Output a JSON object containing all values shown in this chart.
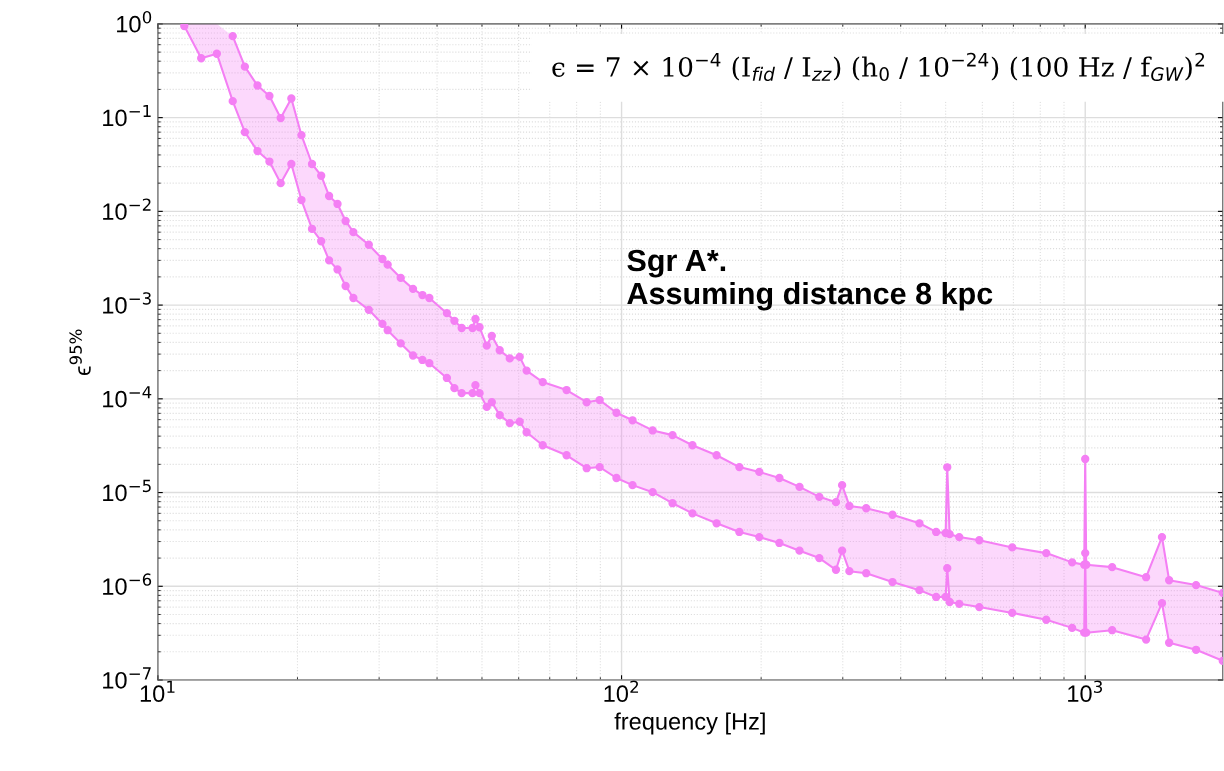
{
  "chart_data": {
    "type": "line",
    "xlabel": "frequency [Hz]",
    "ylabel": "ϵ$^{95%}$",
    "log": "xy",
    "grid": true,
    "marker": "circle",
    "line_style": "solid",
    "xlim": [
      10,
      1980
    ],
    "ylim": [
      1e-07,
      1
    ],
    "xticks": [
      {
        "value": 10,
        "label": "10$^{1}$"
      },
      {
        "value": 100,
        "label": "10$^{2}$"
      },
      {
        "value": 1000,
        "label": "10$^{3}$"
      }
    ],
    "yticks": [
      {
        "value": 1e-07,
        "label": "10$^{−7}$"
      },
      {
        "value": 1e-06,
        "label": "10$^{−6}$"
      },
      {
        "value": 1e-05,
        "label": "10$^{−5}$"
      },
      {
        "value": 0.0001,
        "label": "10$^{−4}$"
      },
      {
        "value": 0.001,
        "label": "10$^{−3}$"
      },
      {
        "value": 0.01,
        "label": "10$^{−2}$"
      },
      {
        "value": 0.1,
        "label": "10$^{−1}$"
      },
      {
        "value": 1,
        "label": "10$^{0}$"
      }
    ],
    "annotations": [
      "ϵ = 7 × 10$^{−4}$ (I$_{fid}$ / I$_{zz}$) (h$_{0}$ / 10$^{−24}$) (100 Hz / f$_{GW}$)$^{2}$",
      "Sgr A*.\nAssuming distance 8 kpc"
    ],
    "x": [
      11.4,
      12.4,
      13.4,
      14.5,
      15.4,
      16.4,
      17.4,
      18.4,
      19.4,
      20.4,
      21.5,
      22.5,
      23.4,
      24.4,
      25.4,
      26.4,
      28.5,
      30.5,
      31.3,
      33.4,
      35.5,
      37.2,
      38.5,
      42.0,
      43.6,
      45.2,
      47.7,
      48.4,
      49.4,
      51.2,
      52.5,
      54.6,
      57.4,
      60.3,
      62.4,
      67.6,
      76.1,
      84.1,
      89.7,
      97.5,
      105.6,
      116.7,
      128.8,
      142.2,
      160.3,
      179.5,
      198.2,
      219,
      242,
      267,
      290,
      299,
      310,
      337,
      384,
      439,
      477,
      500,
      504,
      510,
      535,
      591,
      696,
      824,
      937,
      995,
      1000,
      1005,
      1143,
      1353,
      1464,
      1517,
      1734,
      1980
    ],
    "series": [
      {
        "color": "#f47ff4",
        "values": [
          null,
          null,
          null,
          0.74,
          0.35,
          0.22,
          0.17,
          0.099,
          0.16,
          0.065,
          0.032,
          0.024,
          0.0146,
          0.012,
          0.0079,
          0.006,
          0.0044,
          0.0031,
          0.0027,
          0.00195,
          0.00149,
          0.00128,
          0.00119,
          0.00082,
          0.00068,
          0.00057,
          0.00057,
          0.00071,
          0.00058,
          0.00037,
          0.00047,
          0.00033,
          0.00027,
          0.00028,
          0.0002,
          0.000151,
          0.000124,
          9.2e-05,
          9.7e-05,
          7.1e-05,
          5.9e-05,
          4.6e-05,
          4.1e-05,
          3.2e-05,
          2.5e-05,
          1.87e-05,
          1.66e-05,
          1.43e-05,
          1.15e-05,
          9e-06,
          7.9e-06,
          1.2e-05,
          7.2e-06,
          6.8e-06,
          5.8e-06,
          4.7e-06,
          3.8e-06,
          3.7e-06,
          1.86e-05,
          3.6e-06,
          3.35e-06,
          3.1e-06,
          2.6e-06,
          2.26e-06,
          1.8e-06,
          1.7e-06,
          2.28e-05,
          1.7e-06,
          1.6e-06,
          1.25e-06,
          3.35e-06,
          1.16e-06,
          1.03e-06,
          8.5e-07
        ],
        "lower": [
          0.95,
          0.43,
          0.48,
          0.15,
          0.07,
          0.044,
          0.034,
          0.02,
          0.032,
          0.0132,
          0.0065,
          0.0048,
          0.003,
          0.0024,
          0.0016,
          0.00119,
          0.00089,
          0.00063,
          0.00054,
          0.00039,
          0.00029,
          0.00026,
          0.00024,
          0.000167,
          0.00013,
          0.000115,
          0.000115,
          0.00014,
          0.000115,
          8.2e-05,
          9.2e-05,
          6.7e-05,
          5.5e-05,
          5.7e-05,
          4.4e-05,
          3.2e-05,
          2.5e-05,
          1.82e-05,
          1.87e-05,
          1.43e-05,
          1.2e-05,
          1.01e-05,
          7.7e-06,
          6e-06,
          4.7e-06,
          3.8e-06,
          3.35e-06,
          2.9e-06,
          2.4e-06,
          2e-06,
          1.5e-06,
          2.4e-06,
          1.45e-06,
          1.38e-06,
          1.11e-06,
          9.1e-07,
          7.7e-07,
          7.7e-07,
          1.56e-06,
          6.8e-07,
          6.5e-07,
          6e-07,
          5.2e-07,
          4.4e-07,
          3.6e-07,
          3.2e-07,
          2.26e-06,
          3.2e-07,
          3.4e-07,
          2.7e-07,
          6.6e-07,
          2.5e-07,
          2.1e-07,
          1.6e-07
        ],
        "upper": [
          1,
          1,
          1,
          0.74,
          0.35,
          0.22,
          0.17,
          0.099,
          0.16,
          0.065,
          0.032,
          0.024,
          0.0146,
          0.012,
          0.0079,
          0.006,
          0.0044,
          0.0031,
          0.0027,
          0.00195,
          0.00149,
          0.00128,
          0.00119,
          0.00082,
          0.00068,
          0.00057,
          0.00057,
          0.00071,
          0.00058,
          0.00037,
          0.00047,
          0.00033,
          0.00027,
          0.00028,
          0.0002,
          0.000151,
          0.000124,
          9.2e-05,
          9.7e-05,
          7.1e-05,
          5.9e-05,
          4.6e-05,
          4.1e-05,
          3.2e-05,
          2.5e-05,
          1.87e-05,
          1.66e-05,
          1.43e-05,
          1.15e-05,
          9e-06,
          7.9e-06,
          1.2e-05,
          7.2e-06,
          6.8e-06,
          5.8e-06,
          4.7e-06,
          3.8e-06,
          3.7e-06,
          1.86e-05,
          3.6e-06,
          3.35e-06,
          3.1e-06,
          2.6e-06,
          2.26e-06,
          1.8e-06,
          1.7e-06,
          2.28e-05,
          1.7e-06,
          1.6e-06,
          1.25e-06,
          3.35e-06,
          1.16e-06,
          1.03e-06,
          8.5e-07
        ]
      },
      {
        "color": "#f47ff4",
        "values": [
          0.95,
          0.43,
          0.48,
          0.15,
          0.07,
          0.044,
          0.034,
          0.02,
          0.032,
          0.0132,
          0.0065,
          0.0048,
          0.003,
          0.0024,
          0.0016,
          0.00119,
          0.00089,
          0.00063,
          0.00054,
          0.00039,
          0.00029,
          0.00026,
          0.00024,
          0.000167,
          0.00013,
          0.000115,
          0.000115,
          0.00014,
          0.000115,
          8.2e-05,
          9.2e-05,
          6.7e-05,
          5.5e-05,
          5.7e-05,
          4.4e-05,
          3.2e-05,
          2.5e-05,
          1.82e-05,
          1.87e-05,
          1.43e-05,
          1.2e-05,
          1.01e-05,
          7.7e-06,
          6e-06,
          4.7e-06,
          3.8e-06,
          3.35e-06,
          2.9e-06,
          2.4e-06,
          2e-06,
          1.5e-06,
          2.4e-06,
          1.45e-06,
          1.38e-06,
          1.11e-06,
          9.1e-07,
          7.7e-07,
          7.7e-07,
          1.56e-06,
          6.8e-07,
          6.5e-07,
          6e-07,
          5.2e-07,
          4.4e-07,
          3.6e-07,
          3.2e-07,
          2.26e-06,
          3.2e-07,
          3.4e-07,
          2.7e-07,
          6.6e-07,
          2.5e-07,
          2.1e-07,
          1.6e-07
        ]
      }
    ]
  }
}
